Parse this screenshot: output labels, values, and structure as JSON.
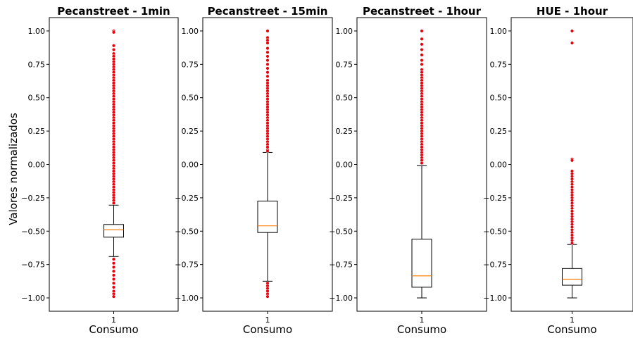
{
  "figure": {
    "ylabel": "Valores normalizados"
  },
  "chart_data": [
    {
      "type": "box",
      "title": "Pecanstreet - 1min",
      "xlabel": "Consumo",
      "x_tick": "1",
      "ylim": [
        -1.1,
        1.1
      ],
      "yticks": [
        "1.00",
        "0.75",
        "0.50",
        "0.25",
        "0.00",
        "−0.25",
        "−0.50",
        "−0.75",
        "−1.00"
      ],
      "box": {
        "q1": -0.545,
        "median": -0.49,
        "q3": -0.45,
        "whisker_low": -0.69,
        "whisker_high": -0.305
      },
      "outliers_high_range": [
        -0.3,
        1.0
      ],
      "outliers_low_range": [
        -1.0,
        -0.7
      ],
      "outliers": [
        1.0,
        0.99,
        0.89,
        0.86,
        0.83,
        0.81,
        0.79,
        0.77,
        0.75,
        0.73,
        0.71,
        0.69,
        0.67,
        0.65,
        0.63,
        0.61,
        0.59,
        0.57,
        0.55,
        0.53,
        0.51,
        0.49,
        0.47,
        0.45,
        0.43,
        0.41,
        0.39,
        0.37,
        0.35,
        0.33,
        0.31,
        0.29,
        0.27,
        0.25,
        0.23,
        0.21,
        0.19,
        0.17,
        0.15,
        0.13,
        0.11,
        0.09,
        0.07,
        0.05,
        0.03,
        0.01,
        -0.01,
        -0.03,
        -0.05,
        -0.07,
        -0.09,
        -0.11,
        -0.13,
        -0.15,
        -0.17,
        -0.19,
        -0.21,
        -0.23,
        -0.25,
        -0.27,
        -0.29,
        -0.71,
        -0.74,
        -0.77,
        -0.8,
        -0.83,
        -0.86,
        -0.89,
        -0.92,
        -0.95,
        -0.97,
        -0.99
      ]
    },
    {
      "type": "box",
      "title": "Pecanstreet - 15min",
      "xlabel": "Consumo",
      "x_tick": "1",
      "ylim": [
        -1.1,
        1.1
      ],
      "yticks": [
        "1.00",
        "0.75",
        "0.50",
        "0.25",
        "0.00",
        "−0.25",
        "−0.50",
        "−0.75",
        "−1.00"
      ],
      "box": {
        "q1": -0.51,
        "median": -0.46,
        "q3": -0.275,
        "whisker_low": -0.875,
        "whisker_high": 0.09
      },
      "outliers": [
        1.0,
        0.95,
        0.93,
        0.91,
        0.87,
        0.84,
        0.81,
        0.78,
        0.75,
        0.72,
        0.69,
        0.66,
        0.63,
        0.61,
        0.59,
        0.57,
        0.55,
        0.53,
        0.51,
        0.49,
        0.47,
        0.45,
        0.43,
        0.41,
        0.39,
        0.37,
        0.35,
        0.33,
        0.31,
        0.29,
        0.27,
        0.25,
        0.23,
        0.21,
        0.19,
        0.17,
        0.15,
        0.13,
        0.11,
        0.1,
        -0.89,
        -0.91,
        -0.93,
        -0.95,
        -0.97,
        -0.99
      ]
    },
    {
      "type": "box",
      "title": "Pecanstreet - 1hour",
      "xlabel": "Consumo",
      "x_tick": "1",
      "ylim": [
        -1.1,
        1.1
      ],
      "yticks": [
        "1.00",
        "0.75",
        "0.50",
        "0.25",
        "0.00",
        "−0.25",
        "−0.50",
        "−0.75",
        "−1.00"
      ],
      "box": {
        "q1": -0.92,
        "median": -0.835,
        "q3": -0.56,
        "whisker_low": -1.0,
        "whisker_high": -0.01
      },
      "outliers": [
        1.0,
        0.94,
        0.9,
        0.86,
        0.82,
        0.78,
        0.75,
        0.71,
        0.69,
        0.67,
        0.65,
        0.63,
        0.61,
        0.59,
        0.57,
        0.55,
        0.53,
        0.51,
        0.49,
        0.47,
        0.45,
        0.43,
        0.41,
        0.39,
        0.37,
        0.35,
        0.33,
        0.31,
        0.29,
        0.27,
        0.25,
        0.23,
        0.21,
        0.19,
        0.17,
        0.15,
        0.13,
        0.11,
        0.09,
        0.07,
        0.05,
        0.03,
        0.01
      ]
    },
    {
      "type": "box",
      "title": "HUE - 1hour",
      "xlabel": "Consumo",
      "x_tick": "1",
      "ylim": [
        -1.1,
        1.1
      ],
      "yticks": [
        "1.00",
        "0.75",
        "0.50",
        "0.25",
        "0.00",
        "−0.25",
        "−0.50",
        "−0.75",
        "−1.00"
      ],
      "box": {
        "q1": -0.905,
        "median": -0.86,
        "q3": -0.78,
        "whisker_low": -1.0,
        "whisker_high": -0.6
      },
      "outliers": [
        1.0,
        0.91,
        0.04,
        0.03,
        -0.05,
        -0.07,
        -0.09,
        -0.11,
        -0.13,
        -0.15,
        -0.17,
        -0.19,
        -0.21,
        -0.23,
        -0.25,
        -0.27,
        -0.29,
        -0.31,
        -0.33,
        -0.35,
        -0.37,
        -0.39,
        -0.41,
        -0.43,
        -0.45,
        -0.47,
        -0.49,
        -0.51,
        -0.53,
        -0.55,
        -0.57,
        -0.59
      ]
    }
  ],
  "colors": {
    "box_line": "#000000",
    "median": "#ff7f0e",
    "outlier": "#e8000b"
  }
}
